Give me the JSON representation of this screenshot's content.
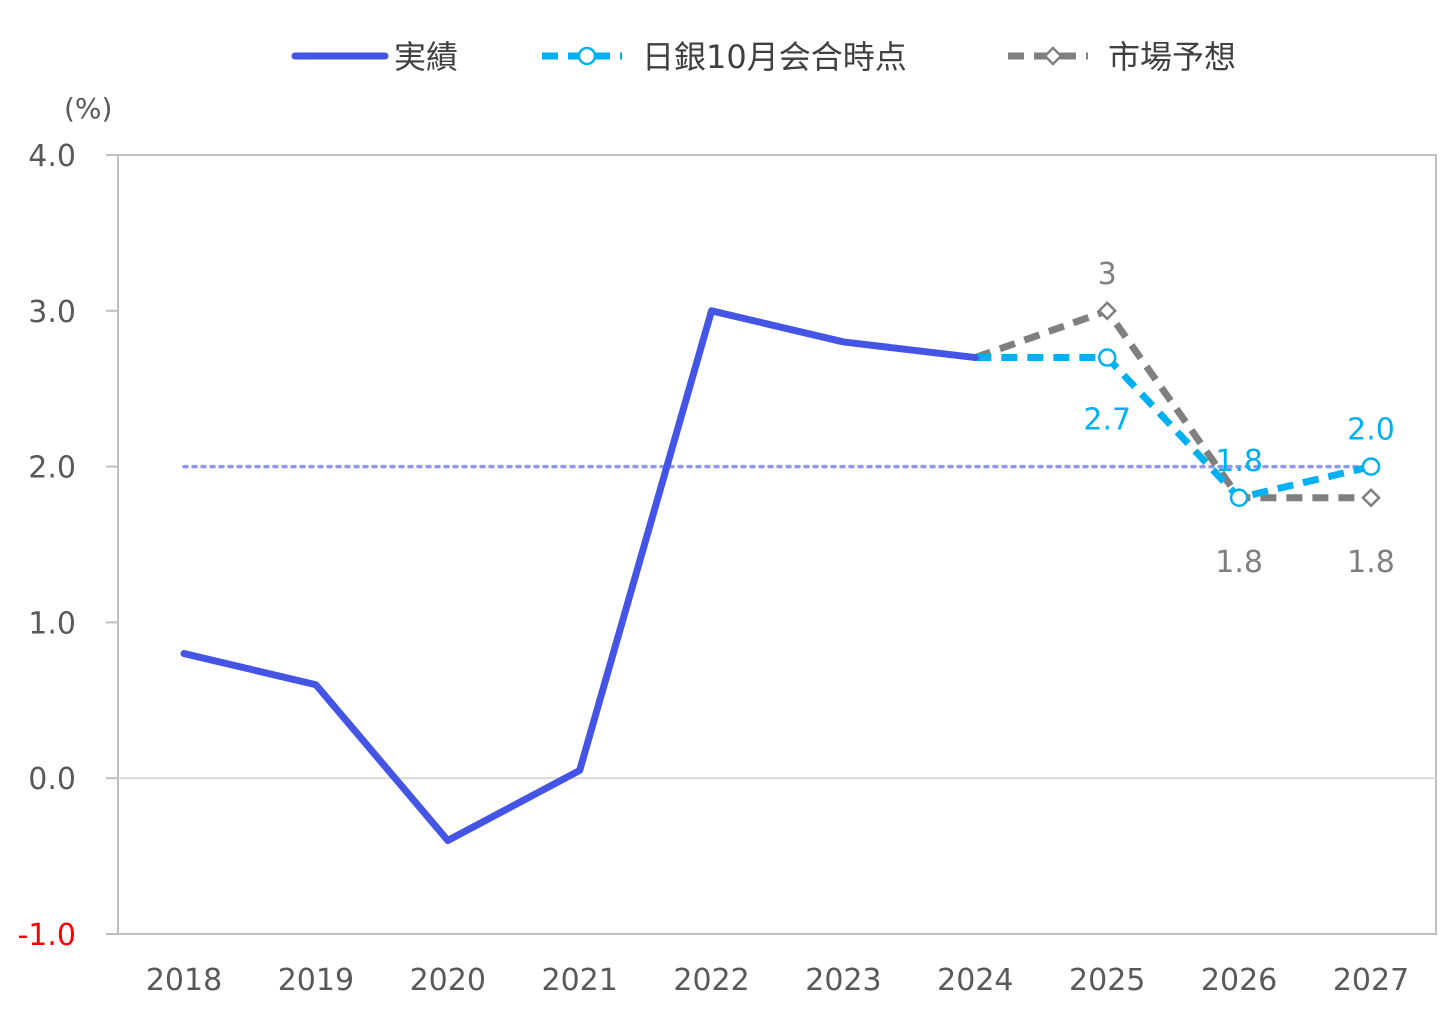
{
  "chart_data": {
    "type": "line",
    "title": "",
    "xlabel": "",
    "ylabel": "(%)",
    "ylim": [
      -1.0,
      4.0
    ],
    "yticks": [
      "4.0",
      "3.0",
      "2.0",
      "1.0",
      "0.0",
      "-1.0"
    ],
    "ytick_values": [
      4,
      3,
      2,
      1,
      0,
      -1
    ],
    "negative_tick_color": "#ff0000",
    "categories": [
      "2018",
      "2019",
      "2020",
      "2021",
      "2022",
      "2023",
      "2024",
      "2025",
      "2026",
      "2027"
    ],
    "grid": false,
    "legend": "top",
    "series": [
      {
        "name": "実績",
        "color": "#4455e6",
        "style": "solid",
        "marker": "none",
        "values": [
          0.8,
          0.6,
          -0.4,
          0.05,
          3.0,
          2.8,
          2.7,
          null,
          null,
          null
        ],
        "labels": []
      },
      {
        "name": "日銀10月会合時点",
        "color": "#00b0f0",
        "style": "dashed",
        "marker": "circle",
        "values": [
          null,
          null,
          null,
          null,
          null,
          null,
          2.7,
          2.7,
          1.8,
          2.0
        ],
        "labels": [
          null,
          null,
          null,
          null,
          null,
          null,
          null,
          "2.7",
          "1.8",
          "2.0"
        ]
      },
      {
        "name": "市場予想",
        "color": "#7f7f7f",
        "style": "dashed",
        "marker": "diamond",
        "values": [
          null,
          null,
          null,
          null,
          null,
          null,
          2.7,
          3.0,
          1.8,
          1.8
        ],
        "labels": [
          null,
          null,
          null,
          null,
          null,
          null,
          null,
          "3",
          "1.8",
          "1.8"
        ]
      }
    ],
    "reference_line": {
      "value": 2.0,
      "color": "#8f99f0",
      "style": "dotted"
    }
  }
}
